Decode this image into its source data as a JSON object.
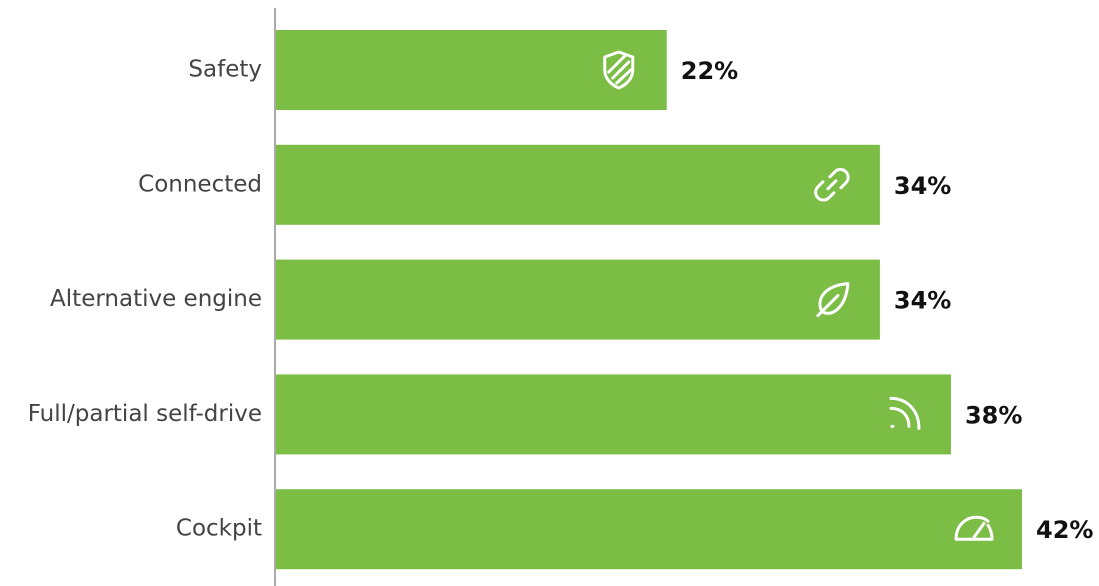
{
  "chart_data": {
    "type": "hbar",
    "categories": [
      "Safety",
      "Connected",
      "Alternative engine",
      "Full/partial self-drive",
      "Cockpit"
    ],
    "values": [
      22,
      34,
      34,
      38,
      42
    ],
    "value_labels": [
      "22%",
      "34%",
      "34%",
      "38%",
      "42%"
    ],
    "color": "#7bbd45"
  }
}
